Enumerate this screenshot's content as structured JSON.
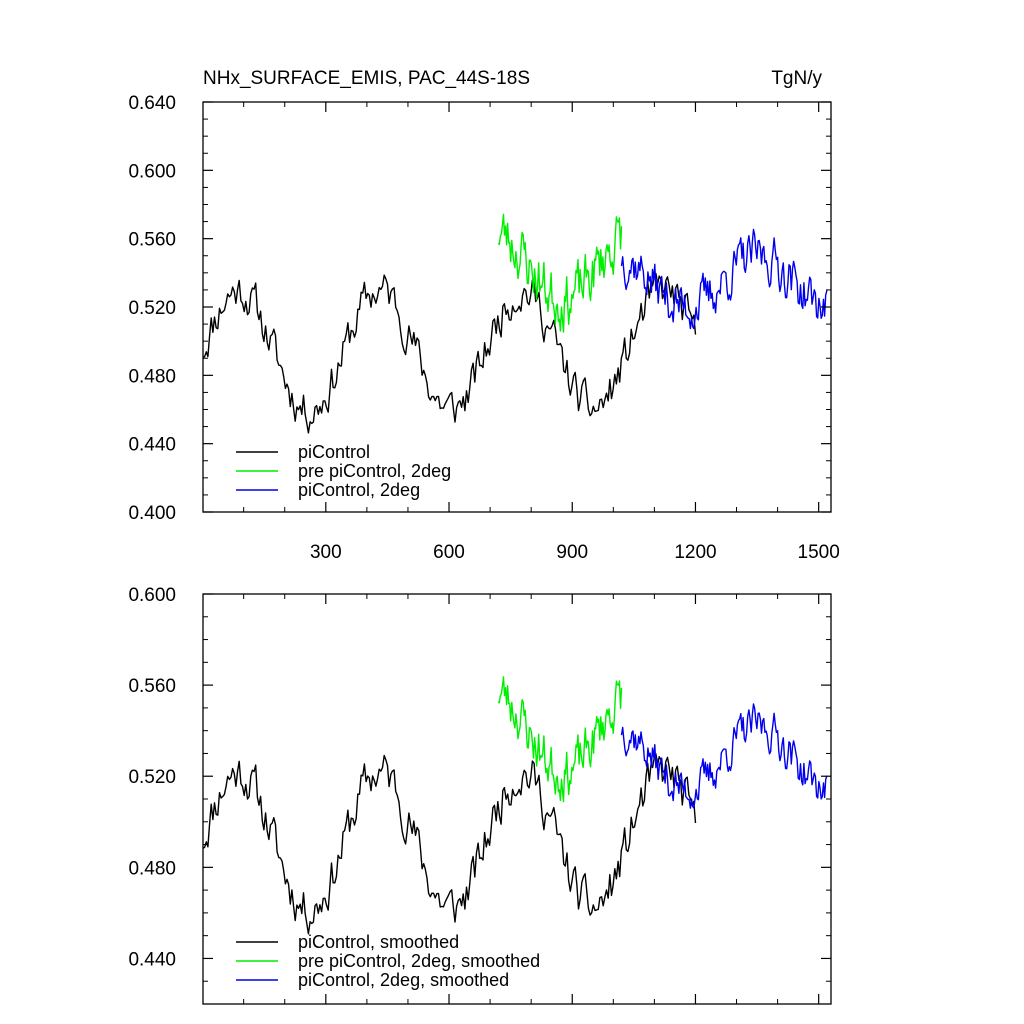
{
  "chart_data": [
    {
      "type": "line",
      "title": "NHx_SURFACE_EMIS, PAC_44S-18S",
      "units": "TgN/y",
      "xlim": [
        1,
        1530
      ],
      "ylim": [
        0.4,
        0.64
      ],
      "xticks": [
        300,
        600,
        900,
        1200,
        1500
      ],
      "xtick_labels": [
        "300",
        "600",
        "900",
        "1200",
        "1500"
      ],
      "yticks": [
        0.4,
        0.44,
        0.48,
        0.52,
        0.56,
        0.6,
        0.64
      ],
      "ytick_labels": [
        "0.400",
        "0.440",
        "0.480",
        "0.520",
        "0.560",
        "0.600",
        "0.640"
      ],
      "legend_position": "bottom-left",
      "series": [
        {
          "name": "piControl",
          "color": "#000000",
          "x_start": 1,
          "x_end": 1200,
          "points": 300,
          "mean": 0.495,
          "amp": 0.035,
          "noise": 0.022,
          "seed": 11,
          "phase": 0.0
        },
        {
          "name": "pre piControl, 2deg",
          "color": "#00ee00",
          "x_start": 720,
          "x_end": 1020,
          "points": 120,
          "mean": 0.545,
          "amp": 0.02,
          "noise": 0.03,
          "seed": 23,
          "phase": 1.3
        },
        {
          "name": "piControl, 2deg",
          "color": "#0000ee",
          "x_start": 1020,
          "x_end": 1520,
          "points": 180,
          "mean": 0.535,
          "amp": 0.015,
          "noise": 0.025,
          "seed": 37,
          "phase": 2.1
        }
      ]
    },
    {
      "type": "line",
      "title": "",
      "xlim": [
        1,
        1530
      ],
      "ylim": [
        0.42,
        0.6
      ],
      "xticks": [
        300,
        600,
        900,
        1200,
        1500
      ],
      "yticks": [
        0.44,
        0.48,
        0.52,
        0.56,
        0.6
      ],
      "ytick_labels": [
        "0.440",
        "0.480",
        "0.520",
        "0.560",
        "0.600"
      ],
      "legend_position": "bottom-left",
      "series": [
        {
          "name": "piControl, smoothed",
          "color": "#000000",
          "x_start": 1,
          "x_end": 1200,
          "points": 300,
          "mean": 0.492,
          "amp": 0.03,
          "noise": 0.018,
          "seed": 11,
          "phase": 0.0
        },
        {
          "name": "pre piControl, 2deg, smoothed",
          "color": "#00ee00",
          "x_start": 720,
          "x_end": 1020,
          "points": 120,
          "mean": 0.54,
          "amp": 0.018,
          "noise": 0.02,
          "seed": 23,
          "phase": 1.3
        },
        {
          "name": "piControl, 2deg, smoothed",
          "color": "#0000ee",
          "x_start": 1020,
          "x_end": 1520,
          "points": 180,
          "mean": 0.528,
          "amp": 0.014,
          "noise": 0.016,
          "seed": 37,
          "phase": 2.1
        }
      ]
    }
  ]
}
